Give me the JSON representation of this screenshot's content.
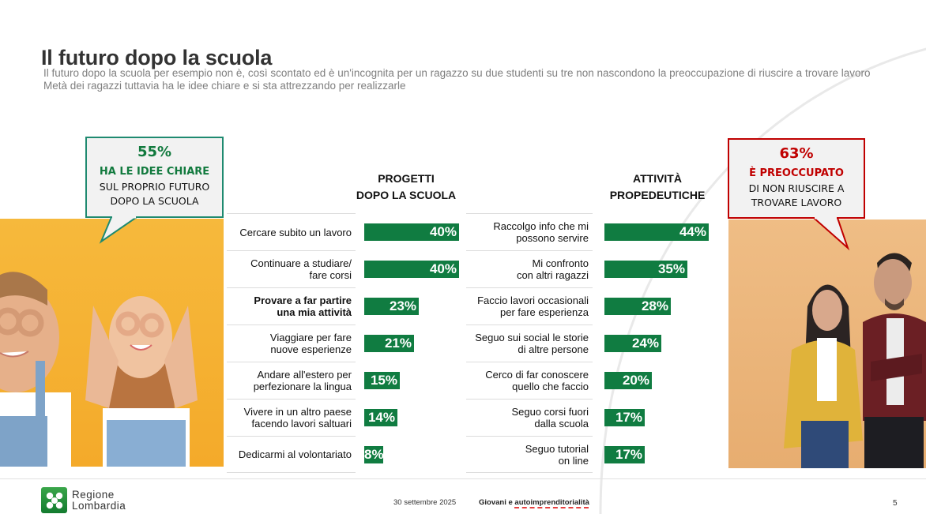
{
  "header": {
    "title": "Il futuro dopo la scuola",
    "subtitle_line1": "Il futuro dopo la scuola per esempio non è, così scontato ed è un'incognita per un ragazzo su due studenti su tre non nascondono la preoccupazione di riuscire a trovare lavoro",
    "subtitle_line2": "Metà dei ragazzi tuttavia ha le idee chiare e si sta attrezzando per realizzarle"
  },
  "callouts": {
    "left": {
      "percent": "55%",
      "headline": "HA LE IDEE CHIARE",
      "line1": "SUL PROPRIO FUTURO",
      "line2": "DOPO LA SCUOLA",
      "color": "#127a3e"
    },
    "right": {
      "percent": "63%",
      "headline": "È PREOCCUPATO",
      "line1": "DI NON RIUSCIRE A",
      "line2": "TROVARE LAVORO",
      "color": "#c00000"
    }
  },
  "chart_data": [
    {
      "type": "bar",
      "orientation": "horizontal",
      "title": "PROGETTI DOPO LA SCUOLA",
      "title_line1": "PROGETTI",
      "title_line2": "DOPO LA SCUOLA",
      "unit": "%",
      "bar_color": "#107c41",
      "xlim": [
        0,
        45
      ],
      "categories": [
        "Cercare subito un lavoro",
        "Continuare a studiare/ fare corsi",
        "Provare a far partire una mia attività",
        "Viaggiare per fare nuove esperienze",
        "Andare all'estero per perfezionare la lingua",
        "Vivere in un altro paese facendo lavori saltuari",
        "Dedicarmi al volontariato"
      ],
      "label_lines": [
        [
          "Cercare subito un lavoro"
        ],
        [
          "Continuare a studiare/",
          "fare corsi"
        ],
        [
          "Provare a far partire",
          "una mia attività"
        ],
        [
          "Viaggiare per fare",
          "nuove esperienze"
        ],
        [
          "Andare all'estero per",
          "perfezionare la lingua"
        ],
        [
          "Vivere in un altro paese",
          "facendo lavori saltuari"
        ],
        [
          "Dedicarmi al volontariato"
        ]
      ],
      "bold_index": 2,
      "values": [
        40,
        40,
        23,
        21,
        15,
        14,
        8
      ],
      "value_labels": [
        "40%",
        "40%",
        "23%",
        "21%",
        "15%",
        "14%",
        "8%"
      ]
    },
    {
      "type": "bar",
      "orientation": "horizontal",
      "title": "ATTIVITÀ PROPEDEUTICHE",
      "title_line1": "ATTIVITÀ",
      "title_line2": "PROPEDEUTICHE",
      "unit": "%",
      "bar_color": "#107c41",
      "xlim": [
        0,
        45
      ],
      "categories": [
        "Raccolgo info che mi possono servire",
        "Mi confronto con altri ragazzi",
        "Faccio lavori occasionali per fare esperienza",
        "Seguo sui social le storie di altre persone",
        "Cerco di far conoscere quello che faccio",
        "Seguo corsi fuori dalla scuola",
        "Seguo tutorial on line"
      ],
      "label_lines": [
        [
          "Raccolgo info che mi",
          "possono servire"
        ],
        [
          "Mi confronto",
          "con altri ragazzi"
        ],
        [
          "Faccio lavori occasionali",
          "per fare esperienza"
        ],
        [
          "Seguo sui social le storie",
          "di altre persone"
        ],
        [
          "Cerco di far conoscere",
          "quello che faccio"
        ],
        [
          "Seguo corsi fuori",
          "dalla scuola"
        ],
        [
          "Seguo tutorial",
          "on line"
        ]
      ],
      "bold_index": -1,
      "values": [
        44,
        35,
        28,
        24,
        20,
        17,
        17
      ],
      "value_labels": [
        "44%",
        "35%",
        "28%",
        "24%",
        "20%",
        "17%",
        "17%"
      ]
    }
  ],
  "photos": {
    "left": "young-people-making-binocular-hands-photo",
    "right": "worried-young-couple-photo"
  },
  "footer": {
    "logo_line1": "Regione",
    "logo_line2": "Lombardia",
    "date": "30 settembre 2025",
    "topic_part1": "Giovani e",
    "topic_part2": "autoimprenditorialità",
    "page_number": "5"
  }
}
